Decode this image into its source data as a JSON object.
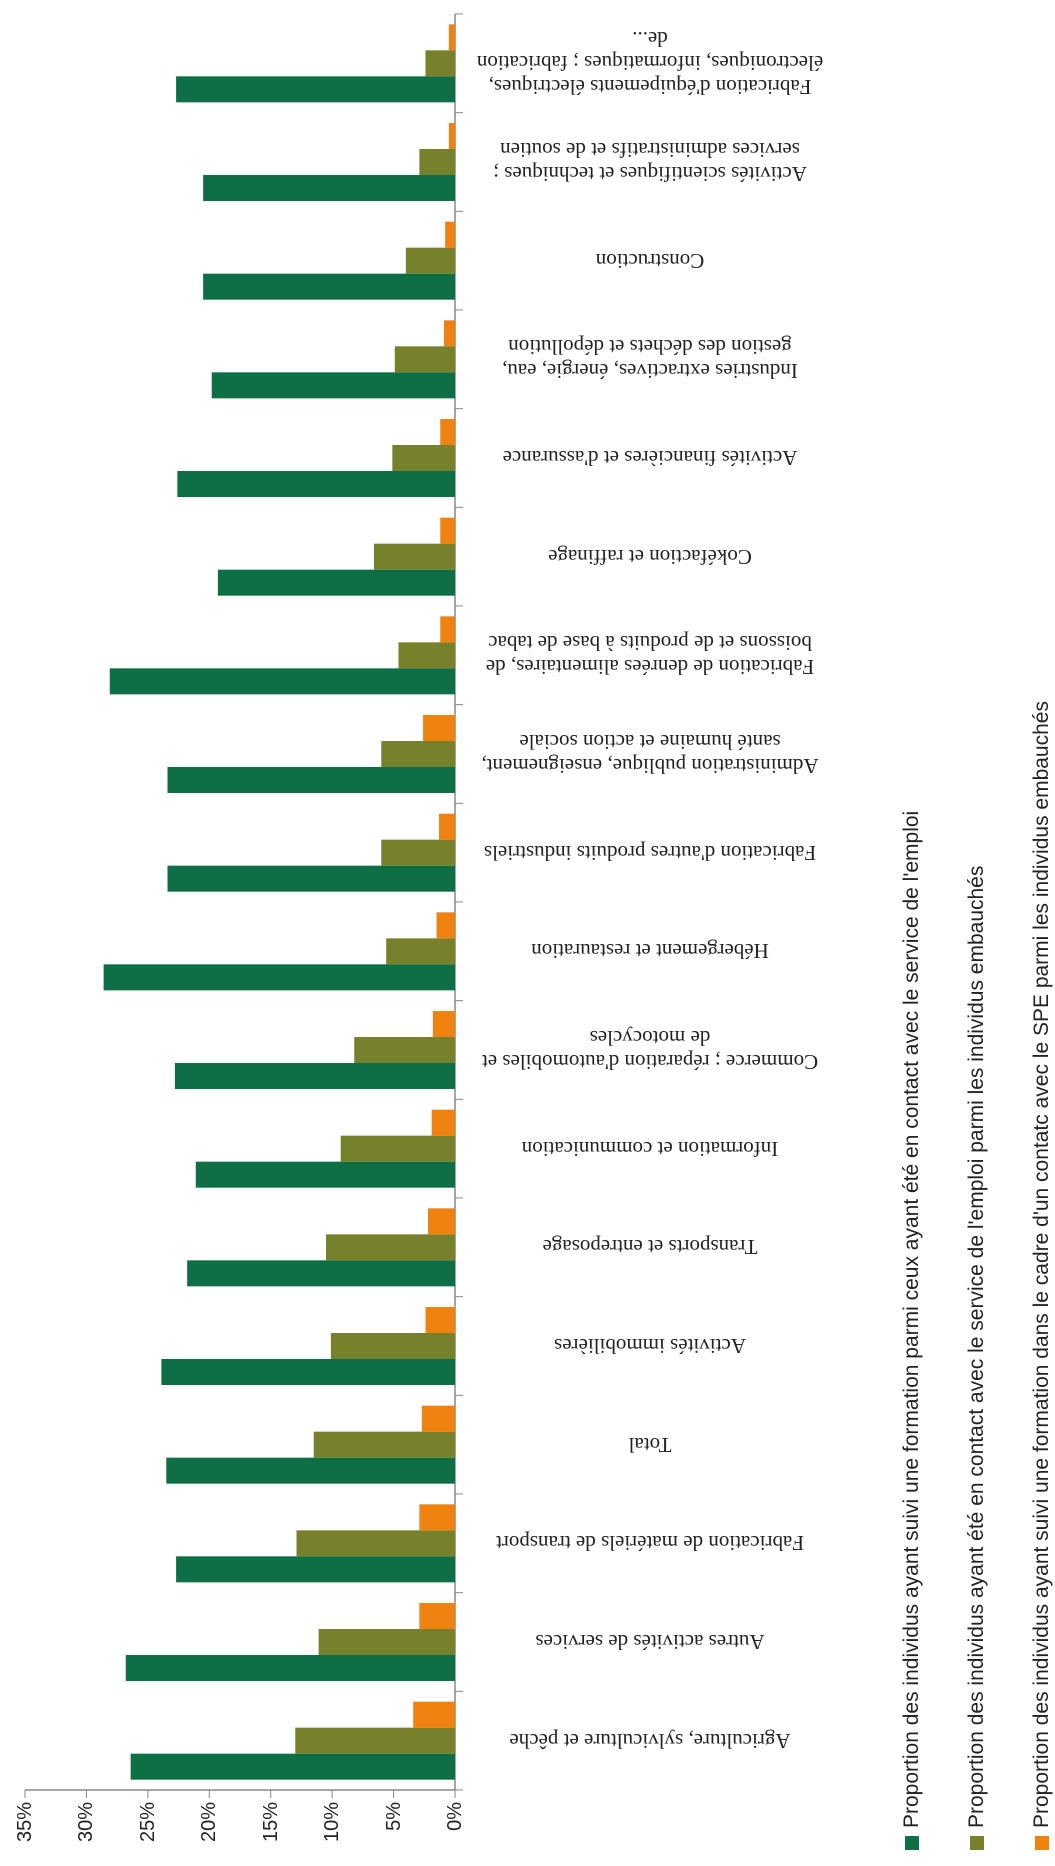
{
  "chart_data": {
    "type": "bar",
    "categories": [
      "Agriculture, sylviculture et pêche",
      "Autres activités de services",
      "Fabrication de matériels de transport",
      "Total",
      "Activités immobilières",
      "Transports et entreposage",
      "Information et communication",
      "Commerce ; réparation d'automobiles et de motocycles",
      "Hébergement et restauration",
      "Fabrication d'autres produits industriels",
      "Administration publique, enseignement, santé humaine et action sociale",
      "Fabrication de denrées alimentaires, de boissons et de produits à base de tabac",
      "Cokéfaction et raffinage",
      "Activités financières et d'assurance",
      "Industries extractives, énergie, eau, gestion des déchets et dépollution",
      "Construction",
      "Activités scientifiques et techniques ; services administratifs et de soutien",
      "Fabrication d'équipements électriques, électroniques, informatiques ; fabrication de..."
    ],
    "series": [
      {
        "name": "Proportion des individus ayant suivi une formation parmi ceux ayant été en contact avec le service de l'emploi",
        "color": "#0e6e45",
        "values": [
          26.4,
          26.8,
          22.7,
          23.5,
          23.9,
          21.8,
          21.1,
          22.8,
          28.6,
          23.4,
          23.4,
          28.1,
          19.3,
          22.6,
          19.8,
          20.5,
          20.5,
          22.7
        ]
      },
      {
        "name": "Proportion des individus ayant été en contact avec le service de l'emploi parmi les individus embauchés",
        "color": "#77802a",
        "values": [
          13.0,
          11.1,
          12.9,
          11.5,
          10.1,
          10.5,
          9.3,
          8.2,
          5.6,
          6.0,
          6.0,
          4.6,
          6.6,
          5.1,
          4.9,
          4.0,
          2.9,
          2.4
        ]
      },
      {
        "name": "Proportion des individus ayant suivi une formation dans le cadre d'un contatc avec le SPE parmi les individus embauchés",
        "color": "#f0820f",
        "values": [
          3.4,
          2.9,
          2.9,
          2.7,
          2.4,
          2.2,
          1.9,
          1.8,
          1.5,
          1.3,
          2.6,
          1.2,
          1.2,
          1.2,
          0.9,
          0.8,
          0.5,
          0.5
        ]
      }
    ],
    "ylim": [
      0,
      35
    ],
    "yticks": [
      {
        "value": 0,
        "label": "0%"
      },
      {
        "value": 5,
        "label": "5%"
      },
      {
        "value": 10,
        "label": "10%"
      },
      {
        "value": 15,
        "label": "15%"
      },
      {
        "value": 20,
        "label": "20%"
      },
      {
        "value": 25,
        "label": "25%"
      },
      {
        "value": 30,
        "label": "30%"
      },
      {
        "value": 35,
        "label": "35%"
      }
    ],
    "grid": false
  }
}
